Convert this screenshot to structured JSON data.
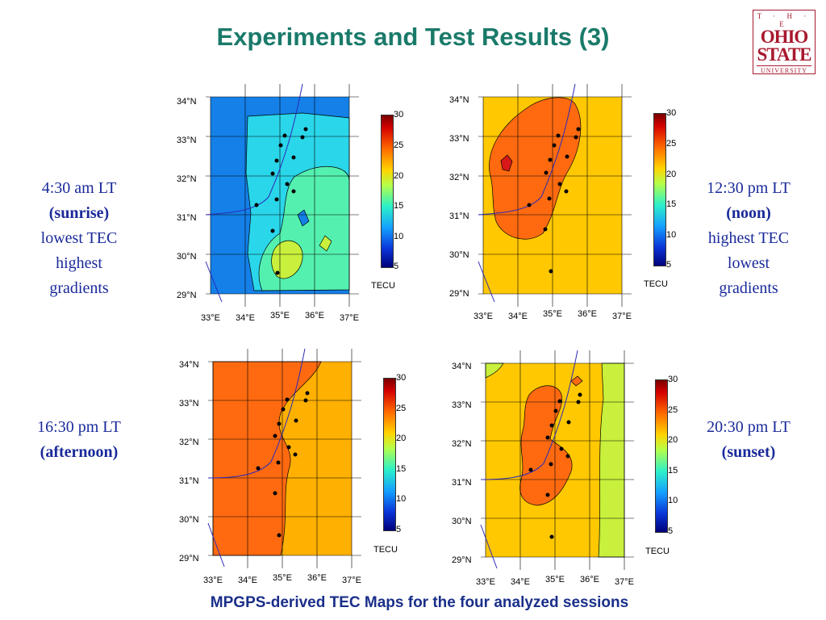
{
  "title": "Experiments and Test Results (3)",
  "footer": "MPGPS-derived TEC Maps for the four analyzed sessions",
  "logo": {
    "the": "T · H · E",
    "ohio": "OHIO",
    "state": "STATE",
    "university": "UNIVERSITY"
  },
  "notes": {
    "tl": {
      "line1": "4:30 am LT",
      "line2": "(sunrise)",
      "line3": "lowest TEC",
      "line4": "highest",
      "line5": "gradients"
    },
    "tr": {
      "line1": "12:30 pm LT",
      "line2": "(noon)",
      "line3": "highest TEC",
      "line4": "lowest",
      "line5": "gradients"
    },
    "bl": {
      "line1": "16:30 pm LT",
      "line2": "(afternoon)"
    },
    "br": {
      "line1": "20:30 pm LT",
      "line2": "(sunset)"
    }
  },
  "axes": {
    "lat_labels": [
      "34°N",
      "33°N",
      "32°N",
      "31°N",
      "30°N",
      "29°N"
    ],
    "lon_labels": [
      "33°E",
      "34°E",
      "35°E",
      "36°E",
      "37°E"
    ]
  },
  "colorbar": {
    "ticks": [
      "30",
      "25",
      "20",
      "15",
      "10",
      "5"
    ],
    "unit": "TECU"
  },
  "colors": {
    "title": "#1a7a6a",
    "notes": "#1a2a9a",
    "footer": "#1a2f8a",
    "logo": "#a8192e"
  }
}
